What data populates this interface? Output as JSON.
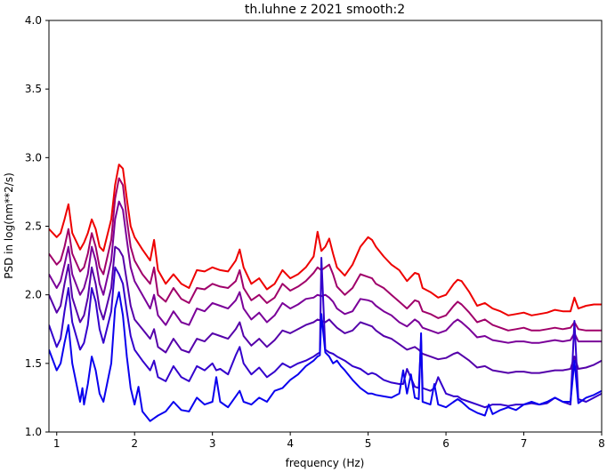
{
  "chart_data": {
    "type": "line",
    "title": "th.luhne z 2021 smooth:2",
    "xlabel": "frequency (Hz)",
    "ylabel": "PSD in log(nm**2/s)",
    "xlim": [
      0.9,
      8.0
    ],
    "ylim": [
      1.0,
      4.0
    ],
    "xticks": [
      1,
      2,
      3,
      4,
      5,
      6,
      7,
      8
    ],
    "yticks": [
      1.0,
      1.5,
      2.0,
      2.5,
      3.0,
      3.5,
      4.0
    ],
    "grid": false,
    "legend": "none",
    "series": [
      {
        "color": "#ee0000",
        "x": [
          0.9,
          1.0,
          1.05,
          1.1,
          1.15,
          1.2,
          1.3,
          1.35,
          1.4,
          1.45,
          1.5,
          1.55,
          1.6,
          1.7,
          1.75,
          1.8,
          1.85,
          1.9,
          1.95,
          2.0,
          2.1,
          2.2,
          2.25,
          2.3,
          2.4,
          2.5,
          2.6,
          2.7,
          2.8,
          2.9,
          3.0,
          3.1,
          3.2,
          3.3,
          3.35,
          3.4,
          3.5,
          3.6,
          3.7,
          3.8,
          3.9,
          4.0,
          4.1,
          4.2,
          4.3,
          4.35,
          4.4,
          4.45,
          4.5,
          4.55,
          4.6,
          4.7,
          4.8,
          4.9,
          5.0,
          5.05,
          5.1,
          5.2,
          5.3,
          5.4,
          5.5,
          5.6,
          5.65,
          5.7,
          5.8,
          5.9,
          6.0,
          6.1,
          6.15,
          6.2,
          6.3,
          6.4,
          6.5,
          6.6,
          6.7,
          6.8,
          6.9,
          7.0,
          7.1,
          7.2,
          7.3,
          7.4,
          7.5,
          7.6,
          7.65,
          7.7,
          7.8,
          7.9,
          8.0
        ],
        "values": [
          2.48,
          2.42,
          2.45,
          2.55,
          2.66,
          2.45,
          2.33,
          2.38,
          2.45,
          2.55,
          2.48,
          2.35,
          2.32,
          2.55,
          2.8,
          2.95,
          2.92,
          2.7,
          2.5,
          2.42,
          2.33,
          2.25,
          2.4,
          2.18,
          2.08,
          2.15,
          2.08,
          2.05,
          2.18,
          2.17,
          2.2,
          2.18,
          2.17,
          2.25,
          2.33,
          2.2,
          2.08,
          2.12,
          2.04,
          2.08,
          2.18,
          2.12,
          2.15,
          2.2,
          2.28,
          2.46,
          2.32,
          2.35,
          2.41,
          2.3,
          2.2,
          2.14,
          2.22,
          2.35,
          2.42,
          2.4,
          2.35,
          2.28,
          2.22,
          2.18,
          2.1,
          2.16,
          2.15,
          2.05,
          2.02,
          1.98,
          2.0,
          2.08,
          2.11,
          2.1,
          2.02,
          1.92,
          1.94,
          1.9,
          1.88,
          1.85,
          1.86,
          1.87,
          1.85,
          1.86,
          1.87,
          1.89,
          1.88,
          1.88,
          1.98,
          1.9,
          1.92,
          1.93,
          1.93
        ]
      },
      {
        "color": "#a0006a",
        "x": [
          0.9,
          1.0,
          1.05,
          1.1,
          1.15,
          1.2,
          1.3,
          1.35,
          1.4,
          1.45,
          1.5,
          1.55,
          1.6,
          1.7,
          1.75,
          1.8,
          1.85,
          1.9,
          1.95,
          2.0,
          2.1,
          2.2,
          2.25,
          2.3,
          2.4,
          2.5,
          2.6,
          2.7,
          2.8,
          2.9,
          3.0,
          3.1,
          3.2,
          3.3,
          3.35,
          3.4,
          3.5,
          3.6,
          3.7,
          3.8,
          3.9,
          4.0,
          4.1,
          4.2,
          4.3,
          4.35,
          4.4,
          4.45,
          4.5,
          4.55,
          4.6,
          4.7,
          4.8,
          4.9,
          5.0,
          5.05,
          5.1,
          5.2,
          5.3,
          5.4,
          5.5,
          5.6,
          5.65,
          5.7,
          5.8,
          5.9,
          6.0,
          6.1,
          6.15,
          6.2,
          6.3,
          6.4,
          6.5,
          6.6,
          6.7,
          6.8,
          6.9,
          7.0,
          7.1,
          7.2,
          7.3,
          7.4,
          7.5,
          7.6,
          7.65,
          7.7,
          7.8,
          7.9,
          8.0
        ],
        "values": [
          2.3,
          2.22,
          2.25,
          2.35,
          2.48,
          2.3,
          2.17,
          2.2,
          2.3,
          2.45,
          2.35,
          2.2,
          2.15,
          2.4,
          2.7,
          2.85,
          2.8,
          2.55,
          2.35,
          2.25,
          2.15,
          2.08,
          2.2,
          2.0,
          1.95,
          2.05,
          1.97,
          1.94,
          2.05,
          2.04,
          2.08,
          2.06,
          2.05,
          2.1,
          2.18,
          2.05,
          1.96,
          2.0,
          1.94,
          1.98,
          2.08,
          2.03,
          2.06,
          2.1,
          2.16,
          2.2,
          2.18,
          2.2,
          2.22,
          2.15,
          2.06,
          2.0,
          2.05,
          2.15,
          2.13,
          2.12,
          2.08,
          2.05,
          2.0,
          1.95,
          1.9,
          1.96,
          1.95,
          1.88,
          1.86,
          1.83,
          1.85,
          1.92,
          1.95,
          1.93,
          1.87,
          1.8,
          1.82,
          1.78,
          1.76,
          1.74,
          1.75,
          1.76,
          1.74,
          1.74,
          1.75,
          1.76,
          1.75,
          1.76,
          1.8,
          1.75,
          1.74,
          1.74,
          1.74
        ]
      },
      {
        "color": "#7a0099",
        "x": [
          0.9,
          1.0,
          1.05,
          1.1,
          1.15,
          1.2,
          1.3,
          1.35,
          1.4,
          1.45,
          1.5,
          1.55,
          1.6,
          1.7,
          1.75,
          1.8,
          1.85,
          1.9,
          1.95,
          2.0,
          2.1,
          2.2,
          2.25,
          2.3,
          2.4,
          2.5,
          2.6,
          2.7,
          2.8,
          2.9,
          3.0,
          3.1,
          3.2,
          3.3,
          3.35,
          3.4,
          3.5,
          3.6,
          3.7,
          3.8,
          3.9,
          4.0,
          4.1,
          4.2,
          4.3,
          4.35,
          4.4,
          4.45,
          4.5,
          4.55,
          4.6,
          4.7,
          4.8,
          4.9,
          5.0,
          5.05,
          5.1,
          5.2,
          5.3,
          5.4,
          5.5,
          5.6,
          5.65,
          5.7,
          5.8,
          5.9,
          6.0,
          6.1,
          6.15,
          6.2,
          6.3,
          6.4,
          6.5,
          6.6,
          6.7,
          6.8,
          6.9,
          7.0,
          7.1,
          7.2,
          7.3,
          7.4,
          7.5,
          7.6,
          7.65,
          7.7,
          7.8,
          7.9,
          8.0
        ],
        "values": [
          2.15,
          2.05,
          2.1,
          2.22,
          2.35,
          2.15,
          2.0,
          2.05,
          2.15,
          2.35,
          2.25,
          2.08,
          2.0,
          2.25,
          2.55,
          2.68,
          2.62,
          2.4,
          2.2,
          2.1,
          2.0,
          1.9,
          2.0,
          1.85,
          1.78,
          1.88,
          1.8,
          1.78,
          1.9,
          1.88,
          1.94,
          1.92,
          1.9,
          1.96,
          2.02,
          1.9,
          1.82,
          1.87,
          1.8,
          1.85,
          1.94,
          1.9,
          1.93,
          1.97,
          1.98,
          2.0,
          1.99,
          2.0,
          1.98,
          1.95,
          1.9,
          1.86,
          1.88,
          1.97,
          1.96,
          1.95,
          1.92,
          1.88,
          1.85,
          1.8,
          1.77,
          1.82,
          1.8,
          1.76,
          1.74,
          1.72,
          1.74,
          1.8,
          1.82,
          1.8,
          1.75,
          1.69,
          1.7,
          1.67,
          1.66,
          1.65,
          1.66,
          1.66,
          1.65,
          1.65,
          1.66,
          1.67,
          1.66,
          1.67,
          1.72,
          1.66,
          1.66,
          1.66,
          1.66
        ]
      },
      {
        "color": "#5500aa",
        "x": [
          0.9,
          1.0,
          1.05,
          1.1,
          1.15,
          1.2,
          1.3,
          1.35,
          1.4,
          1.45,
          1.5,
          1.55,
          1.6,
          1.7,
          1.75,
          1.8,
          1.85,
          1.9,
          1.95,
          2.0,
          2.1,
          2.2,
          2.25,
          2.3,
          2.4,
          2.5,
          2.6,
          2.7,
          2.8,
          2.9,
          3.0,
          3.1,
          3.2,
          3.3,
          3.35,
          3.4,
          3.5,
          3.6,
          3.7,
          3.8,
          3.9,
          4.0,
          4.1,
          4.2,
          4.3,
          4.35,
          4.4,
          4.45,
          4.5,
          4.55,
          4.6,
          4.7,
          4.8,
          4.9,
          5.0,
          5.05,
          5.1,
          5.2,
          5.3,
          5.4,
          5.5,
          5.6,
          5.65,
          5.7,
          5.8,
          5.9,
          6.0,
          6.1,
          6.15,
          6.2,
          6.3,
          6.4,
          6.5,
          6.6,
          6.7,
          6.8,
          6.9,
          7.0,
          7.1,
          7.2,
          7.3,
          7.4,
          7.5,
          7.6,
          7.65,
          7.7,
          7.8,
          7.9,
          8.0
        ],
        "values": [
          2.0,
          1.87,
          1.92,
          2.08,
          2.22,
          1.98,
          1.8,
          1.85,
          1.98,
          2.2,
          2.08,
          1.9,
          1.82,
          2.05,
          2.35,
          2.33,
          2.28,
          2.1,
          1.92,
          1.82,
          1.75,
          1.68,
          1.75,
          1.62,
          1.58,
          1.68,
          1.6,
          1.58,
          1.68,
          1.66,
          1.72,
          1.7,
          1.68,
          1.75,
          1.8,
          1.7,
          1.63,
          1.68,
          1.62,
          1.67,
          1.74,
          1.72,
          1.75,
          1.78,
          1.8,
          1.82,
          1.81,
          1.8,
          1.82,
          1.79,
          1.76,
          1.72,
          1.74,
          1.8,
          1.78,
          1.77,
          1.74,
          1.7,
          1.68,
          1.64,
          1.6,
          1.62,
          1.6,
          1.57,
          1.55,
          1.53,
          1.54,
          1.57,
          1.58,
          1.56,
          1.52,
          1.47,
          1.48,
          1.45,
          1.44,
          1.43,
          1.44,
          1.44,
          1.43,
          1.43,
          1.44,
          1.45,
          1.45,
          1.46,
          1.55,
          1.46,
          1.47,
          1.49,
          1.52
        ]
      },
      {
        "color": "#3300cc",
        "x": [
          0.9,
          1.0,
          1.05,
          1.1,
          1.15,
          1.2,
          1.3,
          1.35,
          1.4,
          1.45,
          1.5,
          1.55,
          1.6,
          1.7,
          1.75,
          1.8,
          1.85,
          1.9,
          1.95,
          2.0,
          2.1,
          2.2,
          2.25,
          2.3,
          2.4,
          2.5,
          2.6,
          2.7,
          2.8,
          2.9,
          3.0,
          3.05,
          3.1,
          3.2,
          3.3,
          3.35,
          3.4,
          3.5,
          3.6,
          3.7,
          3.8,
          3.9,
          4.0,
          4.1,
          4.2,
          4.3,
          4.35,
          4.38,
          4.4,
          4.45,
          4.5,
          4.55,
          4.6,
          4.7,
          4.8,
          4.9,
          5.0,
          5.05,
          5.1,
          5.2,
          5.3,
          5.4,
          5.45,
          5.5,
          5.6,
          5.65,
          5.68,
          5.7,
          5.8,
          5.85,
          5.9,
          6.0,
          6.1,
          6.15,
          6.2,
          6.3,
          6.4,
          6.5,
          6.6,
          6.7,
          6.8,
          6.9,
          7.0,
          7.1,
          7.2,
          7.3,
          7.4,
          7.5,
          7.6,
          7.65,
          7.7,
          7.8,
          7.9,
          8.0
        ],
        "values": [
          1.78,
          1.62,
          1.68,
          1.88,
          2.05,
          1.8,
          1.6,
          1.65,
          1.78,
          2.05,
          1.95,
          1.75,
          1.65,
          1.88,
          2.2,
          2.15,
          2.08,
          1.88,
          1.7,
          1.6,
          1.52,
          1.45,
          1.52,
          1.4,
          1.37,
          1.48,
          1.4,
          1.37,
          1.48,
          1.45,
          1.5,
          1.45,
          1.46,
          1.42,
          1.56,
          1.62,
          1.5,
          1.42,
          1.47,
          1.4,
          1.44,
          1.5,
          1.47,
          1.5,
          1.52,
          1.55,
          1.57,
          1.58,
          2.27,
          1.6,
          1.58,
          1.57,
          1.55,
          1.52,
          1.48,
          1.46,
          1.42,
          1.43,
          1.42,
          1.38,
          1.36,
          1.35,
          1.35,
          1.46,
          1.33,
          1.32,
          1.67,
          1.32,
          1.3,
          1.32,
          1.4,
          1.28,
          1.26,
          1.26,
          1.24,
          1.22,
          1.2,
          1.18,
          1.2,
          1.2,
          1.19,
          1.2,
          1.2,
          1.21,
          1.2,
          1.21,
          1.25,
          1.22,
          1.2,
          1.81,
          1.24,
          1.22,
          1.25,
          1.28
        ]
      },
      {
        "color": "#0a00ee",
        "x": [
          0.9,
          1.0,
          1.05,
          1.1,
          1.15,
          1.2,
          1.3,
          1.33,
          1.35,
          1.4,
          1.45,
          1.5,
          1.55,
          1.6,
          1.7,
          1.75,
          1.8,
          1.85,
          1.9,
          1.95,
          2.0,
          2.05,
          2.1,
          2.2,
          2.25,
          2.3,
          2.4,
          2.5,
          2.6,
          2.7,
          2.8,
          2.9,
          3.0,
          3.05,
          3.1,
          3.2,
          3.3,
          3.35,
          3.4,
          3.5,
          3.6,
          3.7,
          3.8,
          3.9,
          4.0,
          4.1,
          4.2,
          4.3,
          4.35,
          4.38,
          4.4,
          4.45,
          4.5,
          4.55,
          4.6,
          4.65,
          4.7,
          4.8,
          4.9,
          5.0,
          5.05,
          5.1,
          5.2,
          5.3,
          5.4,
          5.45,
          5.5,
          5.55,
          5.6,
          5.65,
          5.68,
          5.7,
          5.8,
          5.85,
          5.9,
          6.0,
          6.1,
          6.15,
          6.2,
          6.3,
          6.4,
          6.5,
          6.55,
          6.6,
          6.7,
          6.8,
          6.9,
          7.0,
          7.1,
          7.2,
          7.3,
          7.4,
          7.5,
          7.6,
          7.65,
          7.7,
          7.8,
          7.9,
          8.0
        ],
        "values": [
          1.6,
          1.45,
          1.5,
          1.65,
          1.78,
          1.5,
          1.22,
          1.32,
          1.2,
          1.35,
          1.55,
          1.45,
          1.28,
          1.22,
          1.5,
          1.9,
          2.02,
          1.85,
          1.55,
          1.32,
          1.2,
          1.33,
          1.15,
          1.08,
          1.1,
          1.12,
          1.15,
          1.22,
          1.16,
          1.15,
          1.25,
          1.2,
          1.22,
          1.4,
          1.22,
          1.18,
          1.26,
          1.3,
          1.22,
          1.2,
          1.25,
          1.22,
          1.3,
          1.32,
          1.38,
          1.42,
          1.48,
          1.52,
          1.55,
          1.56,
          1.86,
          1.58,
          1.55,
          1.5,
          1.52,
          1.48,
          1.45,
          1.38,
          1.32,
          1.28,
          1.28,
          1.27,
          1.26,
          1.25,
          1.28,
          1.45,
          1.28,
          1.42,
          1.25,
          1.24,
          1.72,
          1.22,
          1.2,
          1.35,
          1.2,
          1.18,
          1.22,
          1.24,
          1.22,
          1.17,
          1.14,
          1.12,
          1.2,
          1.13,
          1.16,
          1.18,
          1.16,
          1.2,
          1.22,
          1.2,
          1.22,
          1.25,
          1.22,
          1.22,
          1.52,
          1.21,
          1.25,
          1.27,
          1.3
        ]
      }
    ]
  }
}
